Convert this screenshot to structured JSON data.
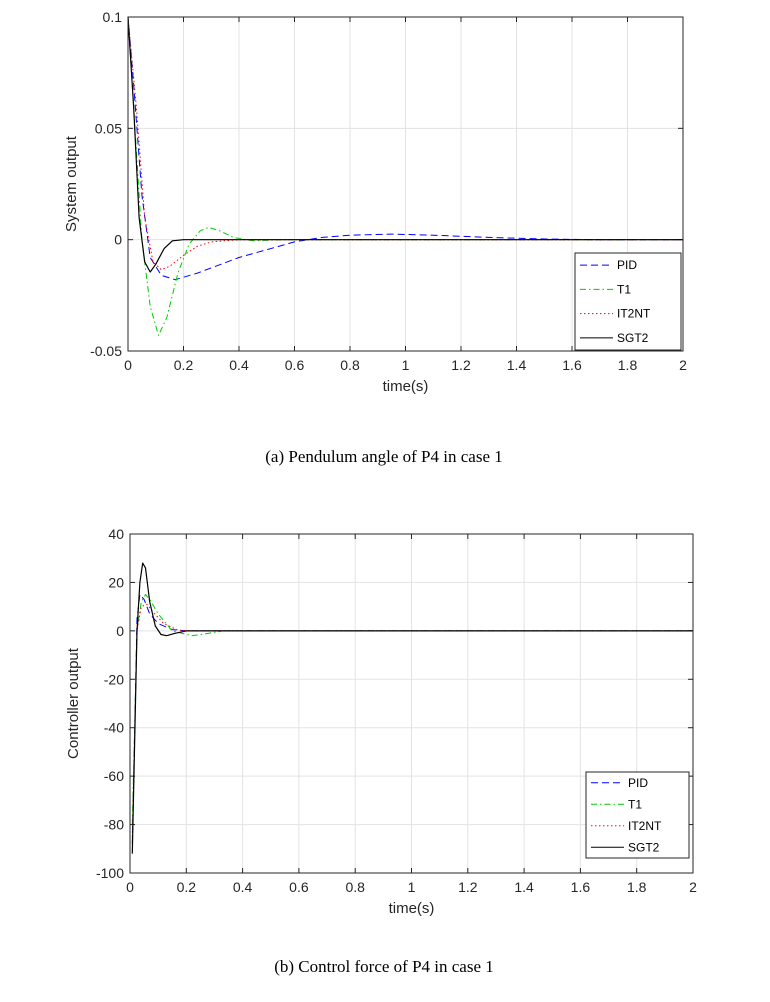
{
  "chart_data": [
    {
      "type": "line",
      "caption": "(a) Pendulum angle of P4 in case 1",
      "xlabel": "time(s)",
      "ylabel": "System output",
      "xlim": [
        0,
        2
      ],
      "ylim": [
        -0.05,
        0.1
      ],
      "xticks": [
        "0",
        "0.2",
        "0.4",
        "0.6",
        "0.8",
        "1",
        "1.2",
        "1.4",
        "1.6",
        "1.8",
        "2"
      ],
      "yticks": [
        "-0.05",
        "0",
        "0.05",
        "0.1"
      ],
      "grid": true,
      "legend_placement": "bottom-right",
      "series": [
        {
          "name": "PID",
          "color": "#0000ff",
          "style": "dashed",
          "points": [
            [
              0,
              0.1
            ],
            [
              0.02,
              0.07
            ],
            [
              0.05,
              0.02
            ],
            [
              0.08,
              -0.008
            ],
            [
              0.12,
              -0.016
            ],
            [
              0.17,
              -0.018
            ],
            [
              0.25,
              -0.015
            ],
            [
              0.4,
              -0.008
            ],
            [
              0.6,
              -0.001
            ],
            [
              0.7,
              0.001
            ],
            [
              0.8,
              0.002
            ],
            [
              0.95,
              0.0025
            ],
            [
              1.1,
              0.002
            ],
            [
              1.3,
              0.001
            ],
            [
              1.5,
              0.0003
            ],
            [
              1.7,
              0
            ],
            [
              2,
              0
            ]
          ]
        },
        {
          "name": "T1",
          "color": "#00cc00",
          "style": "dashdot",
          "points": [
            [
              0,
              0.1
            ],
            [
              0.02,
              0.06
            ],
            [
              0.05,
              0
            ],
            [
              0.08,
              -0.03
            ],
            [
              0.11,
              -0.043
            ],
            [
              0.14,
              -0.035
            ],
            [
              0.18,
              -0.015
            ],
            [
              0.22,
              -0.002
            ],
            [
              0.26,
              0.004
            ],
            [
              0.29,
              0.0055
            ],
            [
              0.33,
              0.004
            ],
            [
              0.38,
              0.001
            ],
            [
              0.45,
              -0.0005
            ],
            [
              0.55,
              0
            ],
            [
              2,
              0
            ]
          ]
        },
        {
          "name": "IT2NT",
          "color": "#ff0000",
          "style": "dotted",
          "points": [
            [
              0,
              0.1
            ],
            [
              0.03,
              0.06
            ],
            [
              0.06,
              0.01
            ],
            [
              0.09,
              -0.01
            ],
            [
              0.12,
              -0.0135
            ],
            [
              0.15,
              -0.012
            ],
            [
              0.2,
              -0.007
            ],
            [
              0.25,
              -0.003
            ],
            [
              0.3,
              -0.001
            ],
            [
              0.4,
              0
            ],
            [
              2,
              0
            ]
          ]
        },
        {
          "name": "SGT2",
          "color": "#000000",
          "style": "solid",
          "points": [
            [
              0,
              0.1
            ],
            [
              0.02,
              0.06
            ],
            [
              0.04,
              0.01
            ],
            [
              0.06,
              -0.01
            ],
            [
              0.08,
              -0.0145
            ],
            [
              0.1,
              -0.011
            ],
            [
              0.13,
              -0.004
            ],
            [
              0.16,
              -0.0005
            ],
            [
              0.2,
              0
            ],
            [
              2,
              0
            ]
          ]
        }
      ]
    },
    {
      "type": "line",
      "caption": "(b) Control force of P4 in case 1",
      "xlabel": "time(s)",
      "ylabel": "Controller output",
      "xlim": [
        0,
        2
      ],
      "ylim": [
        -100,
        40
      ],
      "xticks": [
        "0",
        "0.2",
        "0.4",
        "0.6",
        "0.8",
        "1",
        "1.2",
        "1.4",
        "1.6",
        "1.8",
        "2"
      ],
      "yticks": [
        "-100",
        "-80",
        "-60",
        "-40",
        "-20",
        "0",
        "20",
        "40"
      ],
      "grid": true,
      "legend_placement": "bottom-right",
      "series": [
        {
          "name": "PID",
          "color": "#0000ff",
          "style": "dashed",
          "points": [
            [
              0.008,
              -88
            ],
            [
              0.025,
              5
            ],
            [
              0.035,
              15
            ],
            [
              0.05,
              13
            ],
            [
              0.07,
              7
            ],
            [
              0.1,
              3
            ],
            [
              0.15,
              0.5
            ],
            [
              0.2,
              0
            ],
            [
              2,
              0
            ]
          ]
        },
        {
          "name": "T1",
          "color": "#00cc00",
          "style": "dashdot",
          "points": [
            [
              0.008,
              -80
            ],
            [
              0.025,
              0
            ],
            [
              0.04,
              12
            ],
            [
              0.055,
              15
            ],
            [
              0.07,
              13
            ],
            [
              0.1,
              7
            ],
            [
              0.15,
              0
            ],
            [
              0.22,
              -2
            ],
            [
              0.28,
              -1
            ],
            [
              0.33,
              0
            ],
            [
              2,
              0
            ]
          ]
        },
        {
          "name": "IT2NT",
          "color": "#ff0000",
          "style": "dotted",
          "points": [
            [
              0.008,
              -85
            ],
            [
              0.025,
              0
            ],
            [
              0.04,
              10
            ],
            [
              0.06,
              11
            ],
            [
              0.08,
              8
            ],
            [
              0.12,
              3
            ],
            [
              0.17,
              0.3
            ],
            [
              0.22,
              0
            ],
            [
              2,
              0
            ]
          ]
        },
        {
          "name": "SGT2",
          "color": "#000000",
          "style": "solid",
          "points": [
            [
              0.008,
              -92
            ],
            [
              0.025,
              0
            ],
            [
              0.035,
              20
            ],
            [
              0.045,
              28
            ],
            [
              0.055,
              26
            ],
            [
              0.07,
              12
            ],
            [
              0.09,
              2
            ],
            [
              0.11,
              -1.5
            ],
            [
              0.13,
              -2
            ],
            [
              0.16,
              -1
            ],
            [
              0.2,
              0
            ],
            [
              2,
              0
            ]
          ]
        }
      ]
    }
  ]
}
